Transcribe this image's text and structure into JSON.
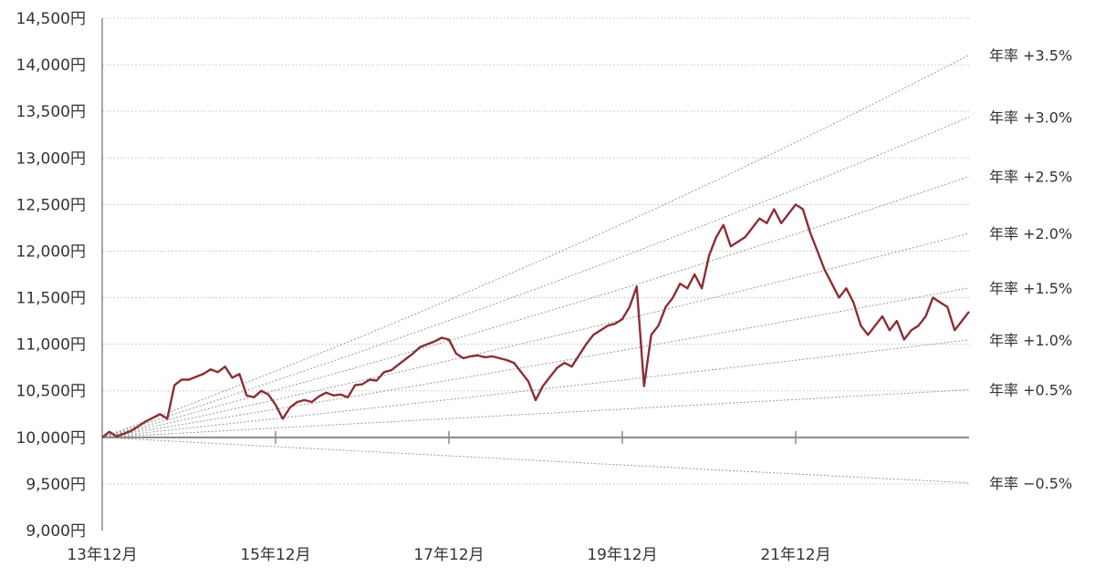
{
  "chart_data": {
    "type": "line",
    "title": "",
    "xlabel": "",
    "ylabel": "",
    "x_range": [
      "2013-12",
      "2023-12"
    ],
    "ylim": [
      9000,
      14500
    ],
    "y_ticks": [
      {
        "value": 14500,
        "label": "14,500円"
      },
      {
        "value": 14000,
        "label": "14,000円"
      },
      {
        "value": 13500,
        "label": "13,500円"
      },
      {
        "value": 13000,
        "label": "13,000円"
      },
      {
        "value": 12500,
        "label": "12,500円"
      },
      {
        "value": 12000,
        "label": "12,000円"
      },
      {
        "value": 11500,
        "label": "11,500円"
      },
      {
        "value": 11000,
        "label": "11,000円"
      },
      {
        "value": 10500,
        "label": "10,500円"
      },
      {
        "value": 10000,
        "label": "10,000円"
      },
      {
        "value": 9500,
        "label": "9,500円"
      },
      {
        "value": 9000,
        "label": "9,000円"
      }
    ],
    "x_ticks": [
      {
        "value": "2013-12",
        "label": "13年12月"
      },
      {
        "value": "2015-12",
        "label": "15年12月"
      },
      {
        "value": "2017-12",
        "label": "17年12月"
      },
      {
        "value": "2019-12",
        "label": "19年12月"
      },
      {
        "value": "2021-12",
        "label": "21年12月"
      }
    ],
    "base_value": 10000,
    "reference_lines": [
      {
        "rate": 3.5,
        "label": "年率 +3.5%"
      },
      {
        "rate": 3.0,
        "label": "年率 +3.0%"
      },
      {
        "rate": 2.5,
        "label": "年率 +2.5%"
      },
      {
        "rate": 2.0,
        "label": "年率 +2.0%"
      },
      {
        "rate": 1.5,
        "label": "年率 +1.5%"
      },
      {
        "rate": 1.0,
        "label": "年率 +1.0%"
      },
      {
        "rate": 0.5,
        "label": "年率 +0.5%"
      },
      {
        "rate": -0.5,
        "label": "年率 −0.5%"
      }
    ],
    "series": [
      {
        "color": "#8b2e35",
        "points": [
          [
            "2013-12",
            10000
          ],
          [
            "2014-01",
            10060
          ],
          [
            "2014-02",
            10010
          ],
          [
            "2014-03",
            10040
          ],
          [
            "2014-04",
            10070
          ],
          [
            "2014-05",
            10120
          ],
          [
            "2014-06",
            10170
          ],
          [
            "2014-07",
            10210
          ],
          [
            "2014-08",
            10250
          ],
          [
            "2014-09",
            10200
          ],
          [
            "2014-10",
            10560
          ],
          [
            "2014-11",
            10620
          ],
          [
            "2014-12",
            10620
          ],
          [
            "2015-01",
            10650
          ],
          [
            "2015-02",
            10680
          ],
          [
            "2015-03",
            10730
          ],
          [
            "2015-04",
            10700
          ],
          [
            "2015-05",
            10760
          ],
          [
            "2015-06",
            10640
          ],
          [
            "2015-07",
            10680
          ],
          [
            "2015-08",
            10450
          ],
          [
            "2015-09",
            10430
          ],
          [
            "2015-10",
            10500
          ],
          [
            "2015-11",
            10460
          ],
          [
            "2015-12",
            10350
          ],
          [
            "2016-01",
            10200
          ],
          [
            "2016-02",
            10320
          ],
          [
            "2016-03",
            10380
          ],
          [
            "2016-04",
            10400
          ],
          [
            "2016-05",
            10380
          ],
          [
            "2016-06",
            10440
          ],
          [
            "2016-07",
            10480
          ],
          [
            "2016-08",
            10450
          ],
          [
            "2016-09",
            10460
          ],
          [
            "2016-10",
            10430
          ],
          [
            "2016-11",
            10560
          ],
          [
            "2016-12",
            10570
          ],
          [
            "2017-01",
            10620
          ],
          [
            "2017-02",
            10610
          ],
          [
            "2017-03",
            10700
          ],
          [
            "2017-04",
            10720
          ],
          [
            "2017-05",
            10780
          ],
          [
            "2017-06",
            10840
          ],
          [
            "2017-07",
            10900
          ],
          [
            "2017-08",
            10970
          ],
          [
            "2017-09",
            11000
          ],
          [
            "2017-10",
            11030
          ],
          [
            "2017-11",
            11070
          ],
          [
            "2017-12",
            11050
          ],
          [
            "2018-01",
            10900
          ],
          [
            "2018-02",
            10850
          ],
          [
            "2018-03",
            10870
          ],
          [
            "2018-04",
            10880
          ],
          [
            "2018-05",
            10860
          ],
          [
            "2018-06",
            10870
          ],
          [
            "2018-07",
            10850
          ],
          [
            "2018-08",
            10830
          ],
          [
            "2018-09",
            10800
          ],
          [
            "2018-10",
            10700
          ],
          [
            "2018-11",
            10600
          ],
          [
            "2018-12",
            10400
          ],
          [
            "2019-01",
            10550
          ],
          [
            "2019-02",
            10650
          ],
          [
            "2019-03",
            10750
          ],
          [
            "2019-04",
            10800
          ],
          [
            "2019-05",
            10760
          ],
          [
            "2019-06",
            10880
          ],
          [
            "2019-07",
            11000
          ],
          [
            "2019-08",
            11100
          ],
          [
            "2019-09",
            11150
          ],
          [
            "2019-10",
            11200
          ],
          [
            "2019-11",
            11220
          ],
          [
            "2019-12",
            11270
          ],
          [
            "2020-01",
            11400
          ],
          [
            "2020-02",
            11620
          ],
          [
            "2020-03",
            10550
          ],
          [
            "2020-04",
            11100
          ],
          [
            "2020-05",
            11200
          ],
          [
            "2020-06",
            11400
          ],
          [
            "2020-07",
            11500
          ],
          [
            "2020-08",
            11650
          ],
          [
            "2020-09",
            11600
          ],
          [
            "2020-10",
            11750
          ],
          [
            "2020-11",
            11600
          ],
          [
            "2020-12",
            11950
          ],
          [
            "2021-01",
            12150
          ],
          [
            "2021-02",
            12280
          ],
          [
            "2021-03",
            12050
          ],
          [
            "2021-04",
            12100
          ],
          [
            "2021-05",
            12150
          ],
          [
            "2021-06",
            12250
          ],
          [
            "2021-07",
            12350
          ],
          [
            "2021-08",
            12300
          ],
          [
            "2021-09",
            12450
          ],
          [
            "2021-10",
            12300
          ],
          [
            "2021-11",
            12400
          ],
          [
            "2021-12",
            12500
          ],
          [
            "2022-01",
            12450
          ],
          [
            "2022-02",
            12200
          ],
          [
            "2022-03",
            12000
          ],
          [
            "2022-04",
            11800
          ],
          [
            "2022-05",
            11650
          ],
          [
            "2022-06",
            11500
          ],
          [
            "2022-07",
            11600
          ],
          [
            "2022-08",
            11450
          ],
          [
            "2022-09",
            11200
          ],
          [
            "2022-10",
            11100
          ],
          [
            "2022-11",
            11200
          ],
          [
            "2022-12",
            11300
          ],
          [
            "2023-01",
            11150
          ],
          [
            "2023-02",
            11250
          ],
          [
            "2023-03",
            11050
          ],
          [
            "2023-04",
            11150
          ],
          [
            "2023-05",
            11200
          ],
          [
            "2023-06",
            11300
          ],
          [
            "2023-07",
            11500
          ],
          [
            "2023-08",
            11450
          ],
          [
            "2023-09",
            11400
          ],
          [
            "2023-10",
            11150
          ],
          [
            "2023-11",
            11250
          ],
          [
            "2023-12",
            11350
          ]
        ]
      }
    ]
  }
}
